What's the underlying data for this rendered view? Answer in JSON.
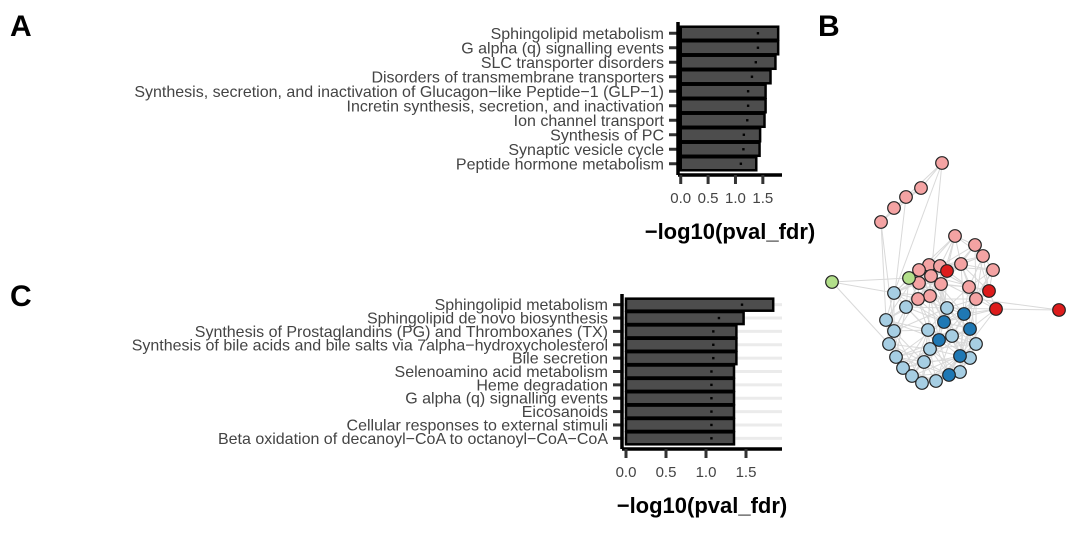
{
  "panels": {
    "a": "A",
    "b": "B",
    "c": "C"
  },
  "chart_data": [
    {
      "id": "A",
      "type": "bar",
      "orientation": "horizontal",
      "categories": [
        "Sphingolipid metabolism",
        "G alpha (q) signalling events",
        "SLC transporter disorders",
        "Disorders of transmembrane transporters",
        "Synthesis, secretion, and inactivation of Glucagon−like Peptide−1 (GLP−1)",
        "Incretin synthesis, secretion, and inactivation",
        "Ion channel transport",
        "Synthesis of PC",
        "Synaptic vesicle cycle",
        "Peptide hormone metabolism"
      ],
      "values": [
        1.78,
        1.78,
        1.73,
        1.64,
        1.55,
        1.55,
        1.53,
        1.45,
        1.44,
        1.38
      ],
      "xlabel": "−log10(pval_fdr)",
      "xlim": [
        -0.05,
        1.85
      ],
      "xticks": [
        0.0,
        0.5,
        1.0,
        1.5
      ],
      "xtick_labels": [
        "0.0",
        "0.5",
        "1.0",
        "1.5"
      ],
      "bar_color": "#4d4d4d"
    },
    {
      "id": "C",
      "type": "bar",
      "orientation": "horizontal",
      "categories": [
        "Sphingolipid metabolism",
        "Sphingolipid de novo biosynthesis",
        "Synthesis of Prostaglandins (PG) and Thromboxanes (TX)",
        "Synthesis of bile acids and bile salts via 7alpha−hydroxycholesterol",
        "Bile secretion",
        "Selenoamino acid metabolism",
        "Heme degradation",
        "G alpha (q) signalling events",
        "Eicosanoids",
        "Cellular responses to external stimuli",
        "Beta oxidation of decanoyl−CoA to octanoyl−CoA−CoA"
      ],
      "values": [
        1.84,
        1.47,
        1.38,
        1.38,
        1.38,
        1.35,
        1.35,
        1.35,
        1.35,
        1.35,
        1.35
      ],
      "xlabel": "−log10(pval_fdr)",
      "xlim": [
        -0.05,
        1.95
      ],
      "xticks": [
        0.0,
        0.5,
        1.0,
        1.5
      ],
      "xtick_labels": [
        "0.0",
        "0.5",
        "1.0",
        "1.5"
      ],
      "bar_color": "#4d4d4d"
    }
  ],
  "network": {
    "edge_color": "#d9d9d9",
    "node_stroke": "#222222",
    "node_colors": {
      "pink": "#f4a3a3",
      "red": "#dd1c1c",
      "lightblue": "#a6cee3",
      "blue": "#1f78b4",
      "green": "#b2df8a"
    }
  }
}
